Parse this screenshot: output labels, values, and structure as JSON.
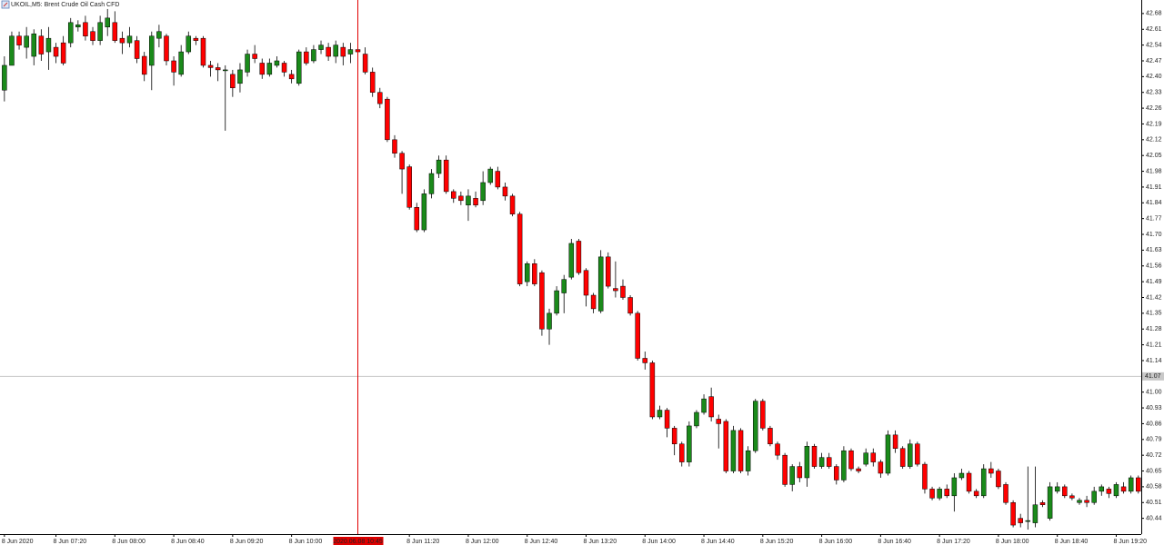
{
  "chart_data": {
    "type": "candlestick",
    "title": "UKOIL,M5:  Brent Crude Oil Cash CFD",
    "up_color": "#1a8a1a",
    "down_color": "#ff0000",
    "ylim": [
      40.37,
      42.74
    ],
    "yticks": [
      42.68,
      42.61,
      42.54,
      42.47,
      {
        "value": 42.4,
        "label": "42.40"
      },
      42.33,
      42.26,
      42.19,
      42.12,
      42.05,
      41.98,
      41.91,
      41.84,
      41.77,
      {
        "value": 41.7,
        "label": "41.70"
      },
      41.63,
      41.56,
      41.49,
      41.42,
      41.35,
      41.28,
      41.21,
      41.14,
      {
        "value": 41,
        "label": "41.00"
      },
      40.93,
      40.86,
      40.79,
      40.72,
      40.65,
      40.58,
      40.51,
      40.44
    ],
    "current_price": 41.07,
    "crosshair": 48,
    "categories": [
      "8 Jun 2020",
      null,
      null,
      null,
      null,
      null,
      null,
      "8 Jun 07:20",
      null,
      null,
      null,
      null,
      null,
      null,
      null,
      "8 Jun 08:00",
      null,
      null,
      null,
      null,
      null,
      null,
      null,
      "8 Jun 08:40",
      null,
      null,
      null,
      null,
      null,
      null,
      null,
      "8 Jun 09:20",
      null,
      null,
      null,
      null,
      null,
      null,
      null,
      "8 Jun 10:00",
      null,
      null,
      null,
      null,
      null,
      null,
      null,
      null,
      "2020.06.08 10:45",
      null,
      null,
      null,
      null,
      null,
      null,
      "8 Jun 11:20",
      null,
      null,
      null,
      null,
      null,
      null,
      null,
      "8 Jun 12:00",
      null,
      null,
      null,
      null,
      null,
      null,
      null,
      "8 Jun 12:40",
      null,
      null,
      null,
      null,
      null,
      null,
      null,
      "8 Jun 13:20",
      null,
      null,
      null,
      null,
      null,
      null,
      null,
      "8 Jun 14:00",
      null,
      null,
      null,
      null,
      null,
      null,
      null,
      "8 Jun 14:40",
      null,
      null,
      null,
      null,
      null,
      null,
      null,
      "8 Jun 15:20",
      null,
      null,
      null,
      null,
      null,
      null,
      null,
      "8 Jun 16:00",
      null,
      null,
      null,
      null,
      null,
      null,
      null,
      "8 Jun 16:40",
      null,
      null,
      null,
      null,
      null,
      null,
      null,
      "8 Jun 17:20",
      null,
      null,
      null,
      null,
      null,
      null,
      null,
      "8 Jun 18:00",
      null,
      null,
      null,
      null,
      null,
      null,
      null,
      "8 Jun 18:40",
      null,
      null,
      null,
      null,
      null,
      null,
      null,
      "8 Jun 19:20",
      null,
      null,
      null
    ],
    "open": [
      42.34,
      42.45,
      42.58,
      42.53,
      42.49,
      42.58,
      42.51,
      42.53,
      42.55,
      42.55,
      42.62,
      42.64,
      42.6,
      42.56,
      42.62,
      42.64,
      42.57,
      42.55,
      42.56,
      42.49,
      42.45,
      42.57,
      42.58,
      42.47,
      42.41,
      42.51,
      42.57,
      42.57,
      42.45,
      42.44,
      42.43,
      42.41,
      42.37,
      42.42,
      42.5,
      42.46,
      42.41,
      42.45,
      42.46,
      42.41,
      42.37,
      42.51,
      42.47,
      42.52,
      42.53,
      42.49,
      42.53,
      42.5,
      42.52,
      42.5,
      42.42,
      42.33,
      42.3,
      42.12,
      42.06,
      42.0,
      41.82,
      41.72,
      41.88,
      41.97,
      42.03,
      41.89,
      41.87,
      41.83,
      41.86,
      41.85,
      41.93,
      41.98,
      41.91,
      41.87,
      41.79,
      41.49,
      41.57,
      41.53,
      41.28,
      41.35,
      41.44,
      41.51,
      41.67,
      41.54,
      41.43,
      41.36,
      41.6,
      41.46,
      41.47,
      41.42,
      41.35,
      41.15,
      41.13,
      40.89,
      40.92,
      40.84,
      40.77,
      40.69,
      40.85,
      40.91,
      40.98,
      40.88,
      40.87,
      40.65,
      40.83,
      40.65,
      40.74,
      40.96,
      40.84,
      40.77,
      40.72,
      40.59,
      40.67,
      40.62,
      40.76,
      40.67,
      40.71,
      40.67,
      40.61,
      40.74,
      40.66,
      40.68,
      40.73,
      40.69,
      40.64,
      40.81,
      40.75,
      40.67,
      40.77,
      40.68,
      40.57,
      40.53,
      40.57,
      40.54,
      40.62,
      40.64,
      40.56,
      40.54,
      40.66,
      40.65,
      40.59,
      40.51,
      40.44,
      40.43,
      40.42,
      40.51,
      40.44,
      40.56,
      40.58,
      40.54,
      40.51,
      40.52,
      40.51,
      40.56,
      40.57,
      40.54,
      40.58,
      40.56,
      40.62
    ],
    "high": [
      42.49,
      42.6,
      42.6,
      42.62,
      42.61,
      42.61,
      42.62,
      42.55,
      42.58,
      42.66,
      42.65,
      42.67,
      42.62,
      42.67,
      42.7,
      42.69,
      42.6,
      42.62,
      42.58,
      42.51,
      42.6,
      42.63,
      42.59,
      42.49,
      42.54,
      42.6,
      42.58,
      42.58,
      42.47,
      42.46,
      42.45,
      42.43,
      42.46,
      42.52,
      42.54,
      42.48,
      42.48,
      42.49,
      42.47,
      42.43,
      42.52,
      42.53,
      42.54,
      42.56,
      42.55,
      42.56,
      42.55,
      42.55,
      42.54,
      42.53,
      42.44,
      42.35,
      42.31,
      42.14,
      42.07,
      42.01,
      41.84,
      41.9,
      41.99,
      42.05,
      42.05,
      41.9,
      41.89,
      41.9,
      41.89,
      41.98,
      42.0,
      42.0,
      41.93,
      41.88,
      41.8,
      41.58,
      41.59,
      41.54,
      41.37,
      41.47,
      41.52,
      41.68,
      41.68,
      41.55,
      41.44,
      41.63,
      41.62,
      41.58,
      41.5,
      41.43,
      41.36,
      41.18,
      41.14,
      40.94,
      40.93,
      40.85,
      40.78,
      40.87,
      40.92,
      40.99,
      41.02,
      40.9,
      40.88,
      40.85,
      40.84,
      40.76,
      40.97,
      40.97,
      40.85,
      40.78,
      40.73,
      40.68,
      40.69,
      40.78,
      40.77,
      40.73,
      40.73,
      40.68,
      40.76,
      40.75,
      40.67,
      40.75,
      40.75,
      40.7,
      40.83,
      40.83,
      40.76,
      40.79,
      40.78,
      40.69,
      40.58,
      40.58,
      40.59,
      40.64,
      40.66,
      40.65,
      40.57,
      40.68,
      40.69,
      40.66,
      40.6,
      40.52,
      40.46,
      40.67,
      40.67,
      40.52,
      40.6,
      40.6,
      40.59,
      40.55,
      40.53,
      40.54,
      40.58,
      40.59,
      40.58,
      40.6,
      40.6,
      40.63,
      40.63
    ],
    "low": [
      42.29,
      42.46,
      42.52,
      42.48,
      42.45,
      42.47,
      42.43,
      42.46,
      42.45,
      42.53,
      42.6,
      42.56,
      42.54,
      42.54,
      42.58,
      42.55,
      42.5,
      42.53,
      42.46,
      42.38,
      42.34,
      42.53,
      42.45,
      42.36,
      42.4,
      42.5,
      42.54,
      42.44,
      42.4,
      42.38,
      42.16,
      42.31,
      42.33,
      42.4,
      42.46,
      42.39,
      42.4,
      42.44,
      42.4,
      42.37,
      42.36,
      42.45,
      42.46,
      42.5,
      42.47,
      42.46,
      42.45,
      42.46,
      42.49,
      42.41,
      42.31,
      42.26,
      42.11,
      42.04,
      41.88,
      41.81,
      41.71,
      41.71,
      41.86,
      41.95,
      41.88,
      41.84,
      41.83,
      41.76,
      41.82,
      41.83,
      41.92,
      41.9,
      41.85,
      41.78,
      41.47,
      41.47,
      41.47,
      41.25,
      41.21,
      41.34,
      41.35,
      41.5,
      41.52,
      41.38,
      41.35,
      41.35,
      41.46,
      41.42,
      41.41,
      41.34,
      41.14,
      41.1,
      40.88,
      40.88,
      40.8,
      40.72,
      40.67,
      40.67,
      40.84,
      40.9,
      40.87,
      40.75,
      40.64,
      40.64,
      40.64,
      40.63,
      40.73,
      40.83,
      40.76,
      40.7,
      40.58,
      40.56,
      40.6,
      40.58,
      40.66,
      40.66,
      40.66,
      40.59,
      40.6,
      40.65,
      40.64,
      40.67,
      40.67,
      40.62,
      40.63,
      40.73,
      40.66,
      40.66,
      40.67,
      40.55,
      40.52,
      40.52,
      40.53,
      40.47,
      40.61,
      40.55,
      40.53,
      40.53,
      40.62,
      40.57,
      40.5,
      40.4,
      40.4,
      40.39,
      40.4,
      40.49,
      40.43,
      40.55,
      40.53,
      40.52,
      40.5,
      40.49,
      40.5,
      40.54,
      40.53,
      40.53,
      40.55,
      40.55,
      40.55
    ],
    "close": [
      42.45,
      42.58,
      42.54,
      42.58,
      42.59,
      42.5,
      42.57,
      42.49,
      42.46,
      42.64,
      42.63,
      42.58,
      42.56,
      42.64,
      42.66,
      42.56,
      42.55,
      42.58,
      42.48,
      42.41,
      42.58,
      42.6,
      42.47,
      42.42,
      42.51,
      42.58,
      42.56,
      42.45,
      42.44,
      42.43,
      42.43,
      42.35,
      42.43,
      42.5,
      42.48,
      42.41,
      42.46,
      42.47,
      42.42,
      42.39,
      42.51,
      42.46,
      42.52,
      42.54,
      42.49,
      42.54,
      42.49,
      42.52,
      42.51,
      42.42,
      42.33,
      42.28,
      42.12,
      42.06,
      41.99,
      41.82,
      41.72,
      41.88,
      41.97,
      42.03,
      41.89,
      41.86,
      41.85,
      41.87,
      41.83,
      41.93,
      41.99,
      41.91,
      41.87,
      41.79,
      41.48,
      41.57,
      41.48,
      41.28,
      41.35,
      41.45,
      41.5,
      41.66,
      41.53,
      41.43,
      41.37,
      41.6,
      41.47,
      41.45,
      41.42,
      41.35,
      41.15,
      41.13,
      40.89,
      40.92,
      40.84,
      40.77,
      40.69,
      40.85,
      40.91,
      40.97,
      40.89,
      40.86,
      40.65,
      40.83,
      40.65,
      40.74,
      40.96,
      40.84,
      40.77,
      40.72,
      40.59,
      40.67,
      40.62,
      40.76,
      40.67,
      40.71,
      40.67,
      40.61,
      40.74,
      40.66,
      40.65,
      40.73,
      40.69,
      40.64,
      40.81,
      40.75,
      40.67,
      40.77,
      40.68,
      40.57,
      40.53,
      40.57,
      40.54,
      40.62,
      40.64,
      40.56,
      40.54,
      40.66,
      40.64,
      40.58,
      40.51,
      40.41,
      40.42,
      40.43,
      40.5,
      40.5,
      40.58,
      40.58,
      40.54,
      40.53,
      40.52,
      40.51,
      40.56,
      40.58,
      40.55,
      40.59,
      40.56,
      40.62,
      40.56
    ]
  }
}
